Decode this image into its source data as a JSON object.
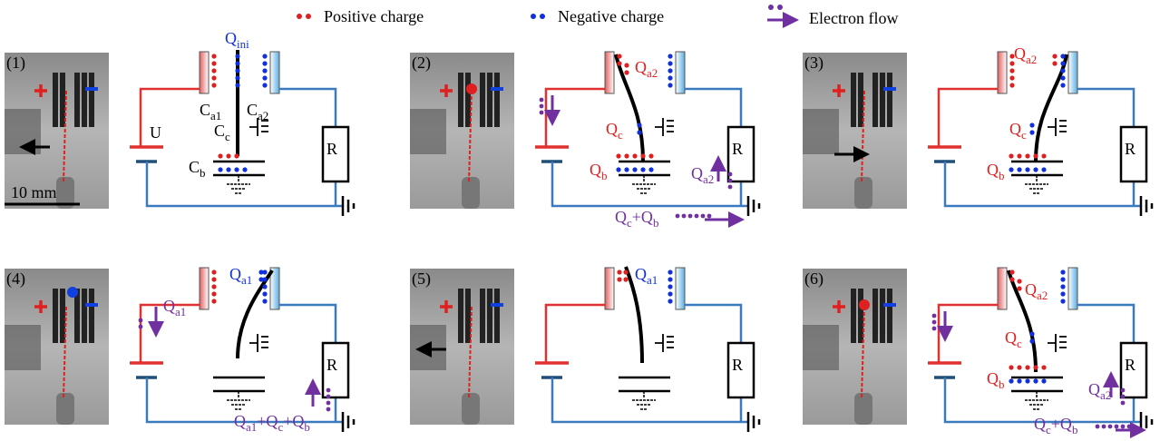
{
  "legend": {
    "positive": "Positive charge",
    "negative": "Negative charge",
    "electron_flow": "Electron flow"
  },
  "panels": [
    {
      "number": "(1)",
      "labels": [
        {
          "parts": [
            {
              "main": "Q",
              "sub": "ini"
            }
          ]
        },
        {
          "parts": [
            {
              "main": "C",
              "sub": "a1"
            }
          ]
        },
        {
          "parts": [
            {
              "main": "C",
              "sub": "a2"
            }
          ]
        },
        {
          "parts": [
            {
              "main": "C",
              "sub": "c"
            }
          ]
        },
        {
          "parts": [
            {
              "main": "C",
              "sub": "b"
            }
          ]
        },
        {
          "parts": [
            {
              "main": "U"
            }
          ]
        },
        {
          "parts": [
            {
              "main": "R"
            }
          ]
        },
        {
          "parts": [
            {
              "main": "10 mm"
            }
          ]
        }
      ]
    },
    {
      "number": "(2)",
      "labels": [
        {
          "parts": [
            {
              "main": "Q",
              "sub": "a2"
            }
          ]
        },
        {
          "parts": [
            {
              "main": "Q",
              "sub": "c"
            }
          ]
        },
        {
          "parts": [
            {
              "main": "Q",
              "sub": "b"
            }
          ]
        },
        {
          "parts": [
            {
              "main": "R"
            }
          ]
        },
        {
          "parts": [
            {
              "main": "Q",
              "sub": "a2"
            }
          ]
        },
        {
          "parts": [
            {
              "main": "Q",
              "sub": "c"
            },
            {
              "main": "+Q",
              "sub": "b"
            }
          ]
        }
      ]
    },
    {
      "number": "(3)",
      "labels": [
        {
          "parts": [
            {
              "main": "Q",
              "sub": "a2"
            }
          ]
        },
        {
          "parts": [
            {
              "main": "Q",
              "sub": "c"
            }
          ]
        },
        {
          "parts": [
            {
              "main": "Q",
              "sub": "b"
            }
          ]
        },
        {
          "parts": [
            {
              "main": "R"
            }
          ]
        }
      ]
    },
    {
      "number": "(4)",
      "labels": [
        {
          "parts": [
            {
              "main": "Q",
              "sub": "a1"
            }
          ]
        },
        {
          "parts": [
            {
              "main": "Q",
              "sub": "a1"
            }
          ]
        },
        {
          "parts": [
            {
              "main": "Q",
              "sub": "a1"
            },
            {
              "main": "+Q",
              "sub": "c"
            },
            {
              "main": "+Q",
              "sub": "b"
            }
          ]
        },
        {
          "parts": [
            {
              "main": "R"
            }
          ]
        }
      ]
    },
    {
      "number": "(5)",
      "labels": [
        {
          "parts": [
            {
              "main": "Q",
              "sub": "a1"
            }
          ]
        },
        {
          "parts": [
            {
              "main": "R"
            }
          ]
        }
      ]
    },
    {
      "number": "(6)",
      "labels": [
        {
          "parts": [
            {
              "main": "Q",
              "sub": "a2"
            }
          ]
        },
        {
          "parts": [
            {
              "main": "Q",
              "sub": "c"
            }
          ]
        },
        {
          "parts": [
            {
              "main": "Q",
              "sub": "b"
            }
          ]
        },
        {
          "parts": [
            {
              "main": "R"
            }
          ]
        },
        {
          "parts": [
            {
              "main": "Q",
              "sub": "a2"
            }
          ]
        },
        {
          "parts": [
            {
              "main": "Q",
              "sub": "c"
            },
            {
              "main": "+Q",
              "sub": "b"
            }
          ]
        }
      ]
    }
  ]
}
